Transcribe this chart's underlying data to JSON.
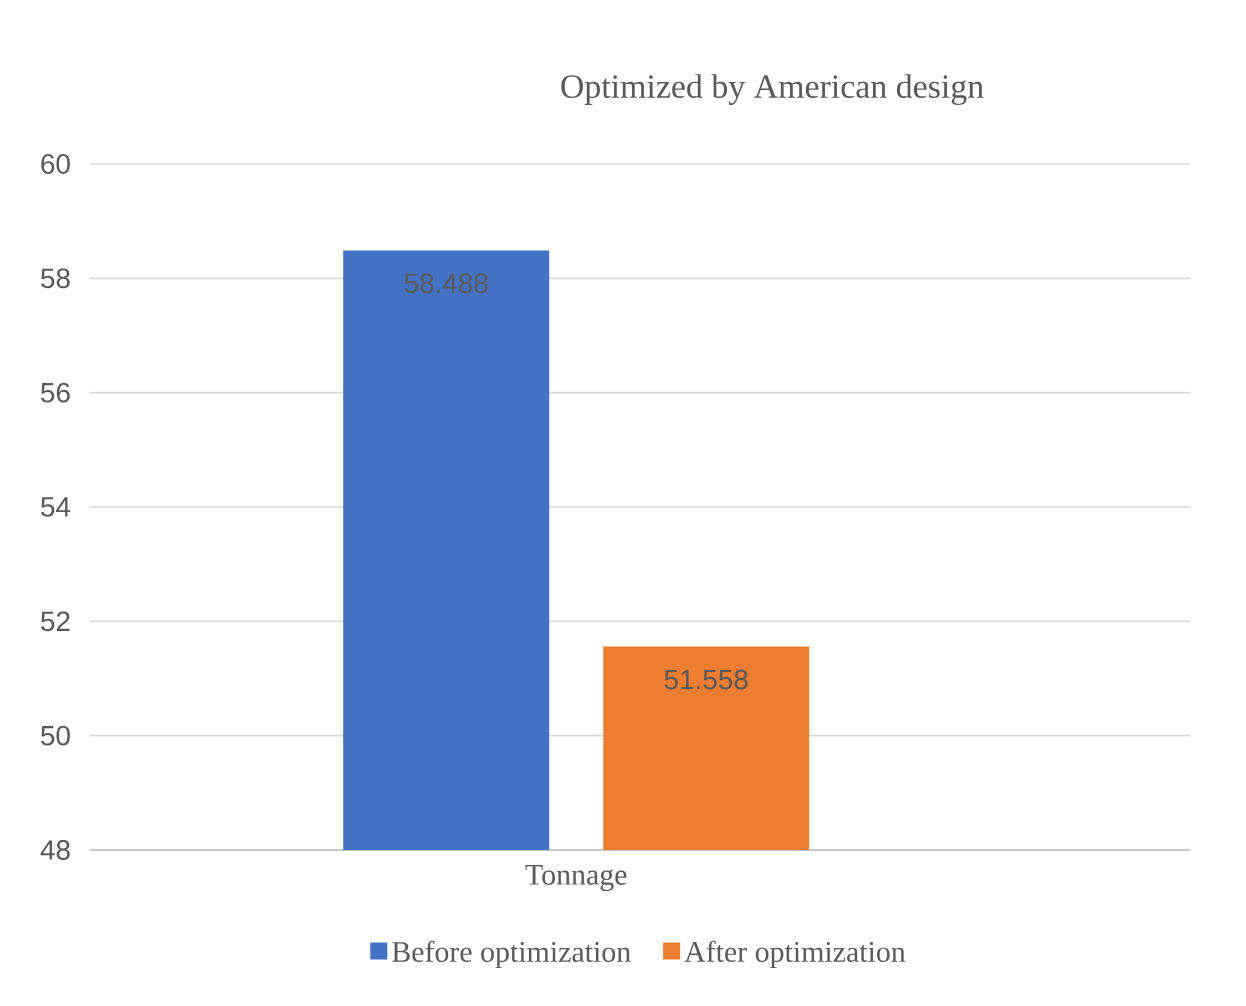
{
  "chart_data": {
    "type": "bar",
    "title": "Optimized by American design",
    "categories": [
      "Tonnage"
    ],
    "series": [
      {
        "name": "Before optimization",
        "color": "#4472c4",
        "values": [
          58.488
        ]
      },
      {
        "name": "After optimization",
        "color": "#ed7d31",
        "values": [
          51.558
        ]
      }
    ],
    "ylim": [
      48,
      60
    ],
    "yticks": [
      48,
      50,
      52,
      54,
      56,
      58,
      60
    ],
    "grid": "y",
    "legend": "bottom",
    "data_labels": true
  }
}
